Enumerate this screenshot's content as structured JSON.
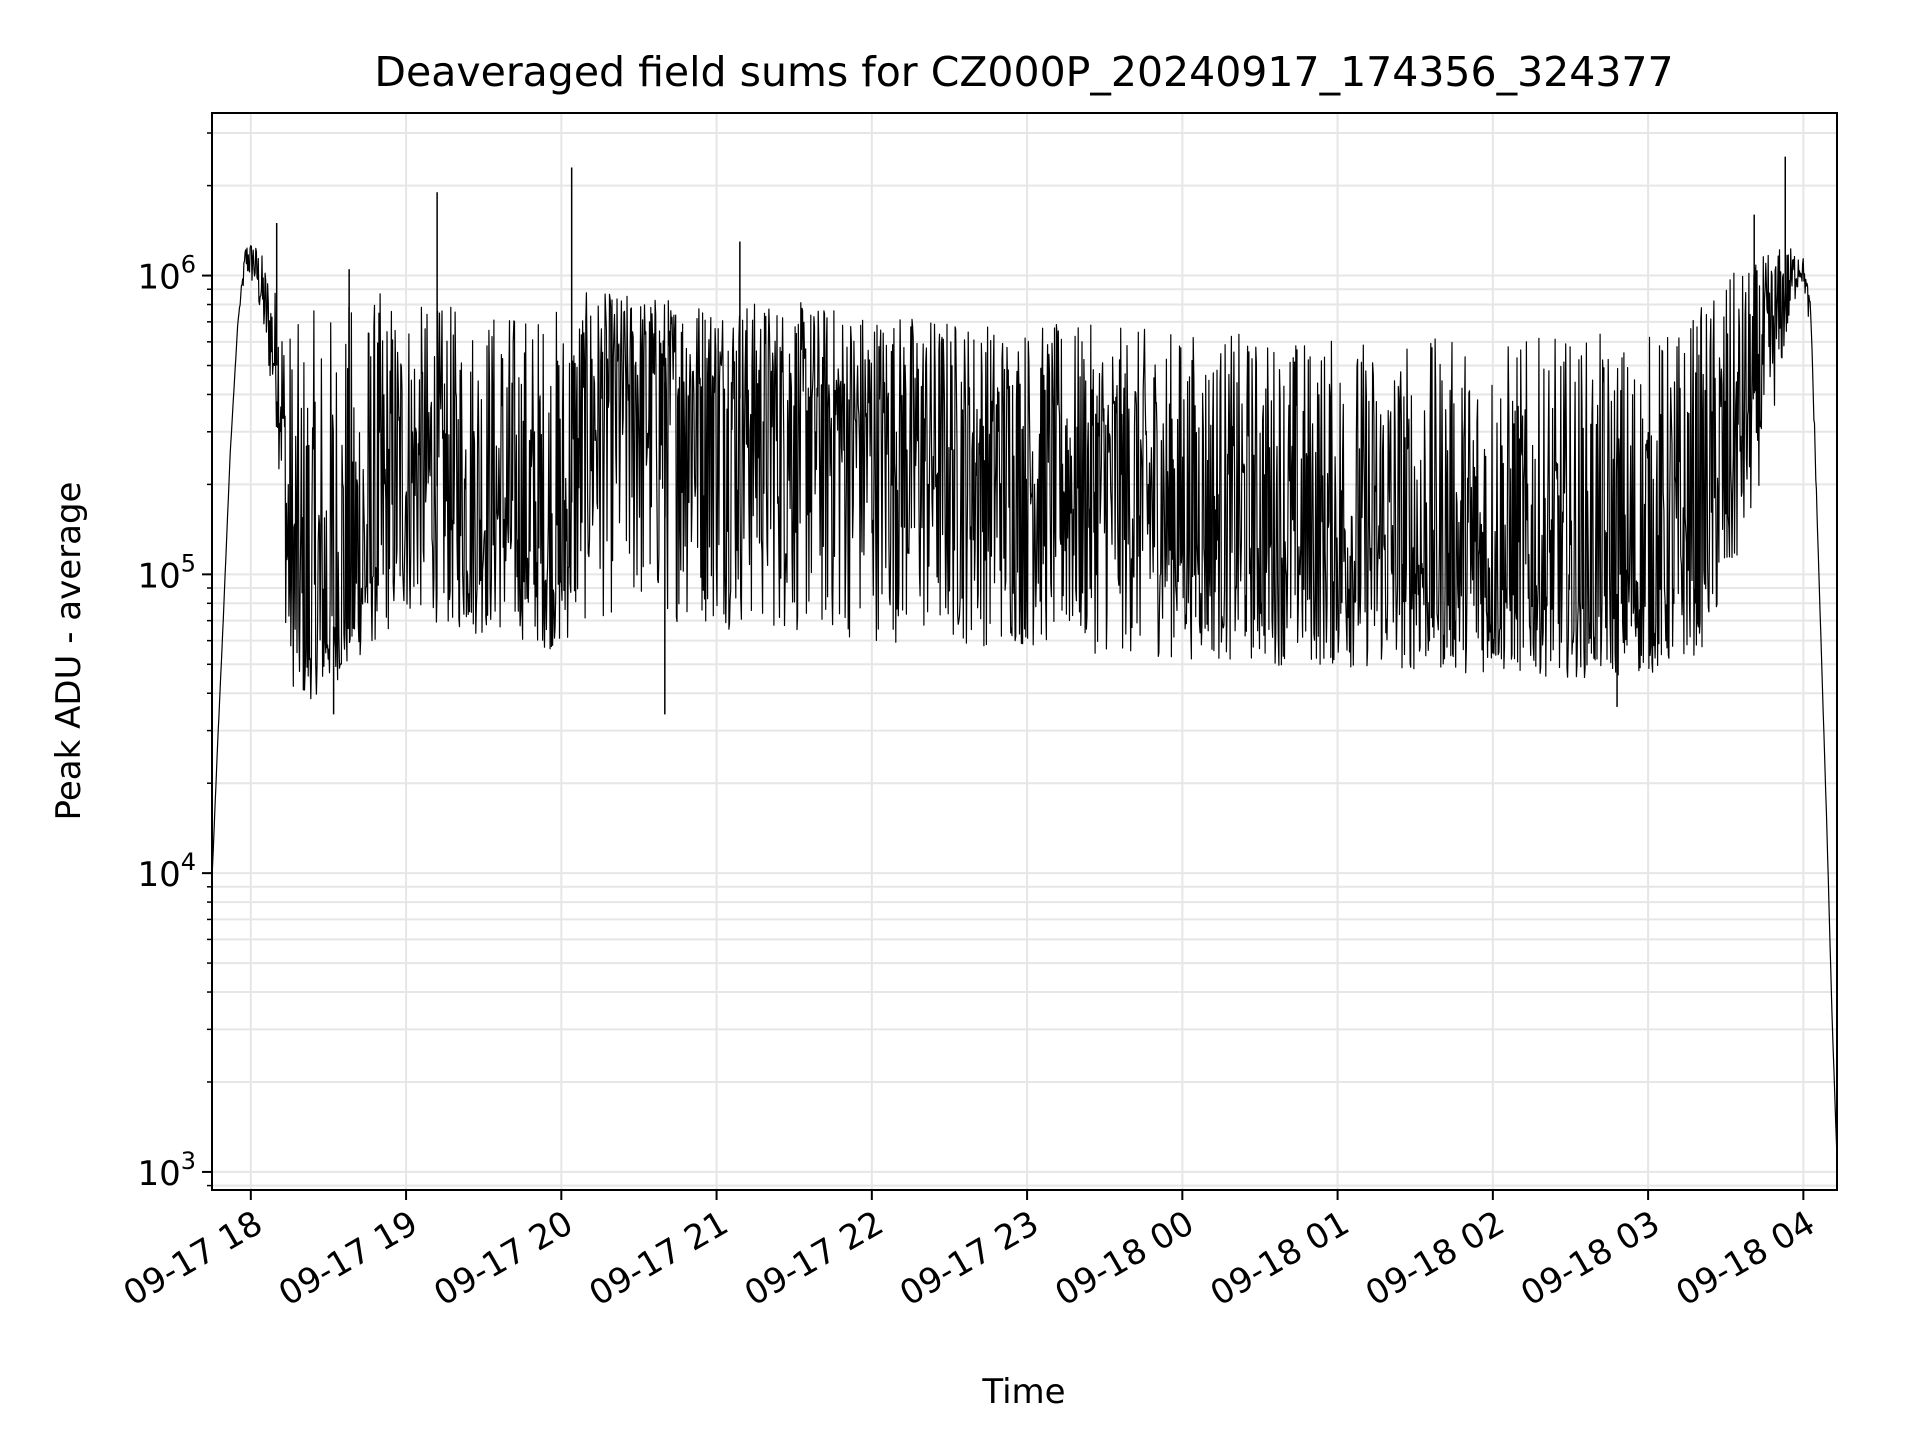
{
  "chart_data": {
    "type": "line",
    "title": "Deaveraged field sums for CZ000P_20240917_174356_324377",
    "xlabel": "Time",
    "ylabel": "Peak ADU - average",
    "yscale": "log",
    "ylim": [
      870,
      3500000
    ],
    "xlim": [
      "2024-09-17 17:45",
      "2024-09-18 04:13"
    ],
    "grid": true,
    "line_color": "#000000",
    "grid_color": "#e6e6e6",
    "x_ticks": [
      {
        "value": "2024-09-17 18:00",
        "label": "09-17 18"
      },
      {
        "value": "2024-09-17 19:00",
        "label": "09-17 19"
      },
      {
        "value": "2024-09-17 20:00",
        "label": "09-17 20"
      },
      {
        "value": "2024-09-17 21:00",
        "label": "09-17 21"
      },
      {
        "value": "2024-09-17 22:00",
        "label": "09-17 22"
      },
      {
        "value": "2024-09-17 23:00",
        "label": "09-17 23"
      },
      {
        "value": "2024-09-18 00:00",
        "label": "09-18 00"
      },
      {
        "value": "2024-09-18 01:00",
        "label": "09-18 01"
      },
      {
        "value": "2024-09-18 02:00",
        "label": "09-18 02"
      },
      {
        "value": "2024-09-18 03:00",
        "label": "09-18 03"
      },
      {
        "value": "2024-09-18 04:00",
        "label": "09-18 04"
      }
    ],
    "y_ticks": [
      {
        "value": 1000,
        "base": "10",
        "exp": "3"
      },
      {
        "value": 10000,
        "base": "10",
        "exp": "4"
      },
      {
        "value": 100000,
        "base": "10",
        "exp": "5"
      },
      {
        "value": 1000000,
        "base": "10",
        "exp": "6"
      }
    ],
    "series": [
      {
        "x": [
          "2024-09-17 17:45",
          "2024-09-17 17:47",
          "2024-09-17 17:49",
          "2024-09-17 17:52",
          "2024-09-17 17:55",
          "2024-09-17 17:58",
          "2024-09-17 18:01",
          "2024-09-17 18:04",
          "2024-09-17 18:08",
          "2024-09-17 18:10",
          "2024-09-17 18:12",
          "2024-09-17 18:13",
          "2024-09-17 18:14",
          "2024-09-17 18:15",
          "2024-09-17 18:17",
          "2024-09-17 18:20",
          "2024-09-17 18:23",
          "2024-09-17 18:26",
          "2024-09-17 18:30",
          "2024-09-17 18:35",
          "2024-09-17 18:40",
          "2024-09-17 18:45",
          "2024-09-17 18:50",
          "2024-09-17 18:55",
          "2024-09-17 19:00",
          "2024-09-17 19:05",
          "2024-09-17 19:10",
          "2024-09-17 19:15",
          "2024-09-17 19:20",
          "2024-09-17 19:25",
          "2024-09-17 19:30",
          "2024-09-17 19:35",
          "2024-09-17 19:40",
          "2024-09-17 19:45",
          "2024-09-17 19:50",
          "2024-09-17 19:55",
          "2024-09-17 20:00",
          "2024-09-17 20:05",
          "2024-09-17 20:10",
          "2024-09-17 20:20",
          "2024-09-17 20:30",
          "2024-09-17 20:40",
          "2024-09-17 20:50",
          "2024-09-17 21:00",
          "2024-09-17 21:15",
          "2024-09-17 21:30",
          "2024-09-17 21:45",
          "2024-09-17 22:00",
          "2024-09-17 22:15",
          "2024-09-17 22:30",
          "2024-09-17 22:45",
          "2024-09-17 23:00",
          "2024-09-17 23:15",
          "2024-09-17 23:30",
          "2024-09-17 23:45",
          "2024-09-18 00:00",
          "2024-09-18 00:15",
          "2024-09-18 00:30",
          "2024-09-18 00:45",
          "2024-09-18 01:00",
          "2024-09-18 01:15",
          "2024-09-18 01:30",
          "2024-09-18 01:45",
          "2024-09-18 02:00",
          "2024-09-18 02:15",
          "2024-09-18 02:30",
          "2024-09-18 02:45",
          "2024-09-18 03:00",
          "2024-09-18 03:10",
          "2024-09-18 03:20",
          "2024-09-18 03:30",
          "2024-09-18 03:40",
          "2024-09-18 03:50",
          "2024-09-18 03:55",
          "2024-09-18 03:58",
          "2024-09-18 04:00",
          "2024-09-18 04:03",
          "2024-09-18 04:06",
          "2024-09-18 04:09",
          "2024-09-18 04:11",
          "2024-09-18 04:13"
        ],
        "y": [
          9500,
          25000,
          60000,
          250000,
          700000,
          1150000,
          1150000,
          900000,
          600000,
          500000,
          400000,
          250000,
          120000,
          90000,
          75000,
          60000,
          55000,
          60000,
          65000,
          70000,
          80000,
          100000,
          130000,
          160000,
          190000,
          220000,
          210000,
          180000,
          160000,
          150000,
          160000,
          170000,
          150000,
          130000,
          120000,
          110000,
          100000,
          200000,
          350000,
          420000,
          450000,
          440000,
          420000,
          400000,
          380000,
          360000,
          330000,
          300000,
          280000,
          250000,
          230000,
          220000,
          210000,
          190000,
          170000,
          150000,
          140000,
          135000,
          125000,
          120000,
          110000,
          105000,
          100000,
          95000,
          90000,
          85000,
          85000,
          90000,
          100000,
          130000,
          200000,
          380000,
          700000,
          950000,
          1100000,
          1050000,
          700000,
          100000,
          15000,
          3500,
          1100
        ],
        "y_low": [
          9500,
          25000,
          60000,
          250000,
          700000,
          1000000,
          900000,
          700000,
          400000,
          300000,
          150000,
          80000,
          55000,
          45000,
          40000,
          38000,
          38000,
          40000,
          42000,
          45000,
          50000,
          55000,
          60000,
          65000,
          70000,
          72000,
          70000,
          66000,
          64000,
          62000,
          62000,
          63000,
          62000,
          60000,
          58000,
          56000,
          56000,
          62000,
          68000,
          72000,
          72000,
          70000,
          68000,
          66000,
          64000,
          62000,
          60000,
          60000,
          58000,
          58000,
          57000,
          56000,
          55000,
          54000,
          53000,
          52000,
          51000,
          50000,
          49000,
          48000,
          48000,
          47000,
          47000,
          46000,
          46000,
          45000,
          45000,
          46000,
          48000,
          55000,
          75000,
          150000,
          400000,
          700000,
          900000,
          950000,
          600000,
          100000,
          15000,
          3500,
          1100
        ],
        "y_high": [
          9500,
          25000,
          60000,
          250000,
          700000,
          1300000,
          1300000,
          1200000,
          1000000,
          900000,
          800000,
          700000,
          750000,
          750000,
          700000,
          700000,
          750000,
          800000,
          800000,
          850000,
          850000,
          850000,
          900000,
          900000,
          850000,
          800000,
          800000,
          800000,
          800000,
          800000,
          800000,
          800000,
          800000,
          800000,
          800000,
          800000,
          850000,
          870000,
          880000,
          880000,
          870000,
          860000,
          850000,
          840000,
          830000,
          820000,
          800000,
          780000,
          760000,
          740000,
          720000,
          700000,
          690000,
          680000,
          670000,
          660000,
          650000,
          640000,
          640000,
          630000,
          630000,
          620000,
          620000,
          620000,
          620000,
          630000,
          640000,
          650000,
          680000,
          800000,
          1000000,
          1100000,
          1250000,
          1250000,
          1200000,
          1150000,
          800000,
          100000,
          15000,
          3500,
          1100
        ],
        "spikes": [
          {
            "x": "2024-09-17 18:10",
            "y": 1500000
          },
          {
            "x": "2024-09-17 18:38",
            "y": 1050000
          },
          {
            "x": "2024-09-17 19:12",
            "y": 1900000
          },
          {
            "x": "2024-09-17 20:04",
            "y": 2300000
          },
          {
            "x": "2024-09-17 21:09",
            "y": 1300000
          },
          {
            "x": "2024-09-18 03:41",
            "y": 1600000
          },
          {
            "x": "2024-09-18 03:53",
            "y": 2500000
          },
          {
            "x": "2024-09-17 18:32",
            "y": 34000
          },
          {
            "x": "2024-09-17 20:40",
            "y": 34000
          },
          {
            "x": "2024-09-18 02:48",
            "y": 36000
          }
        ]
      }
    ]
  }
}
